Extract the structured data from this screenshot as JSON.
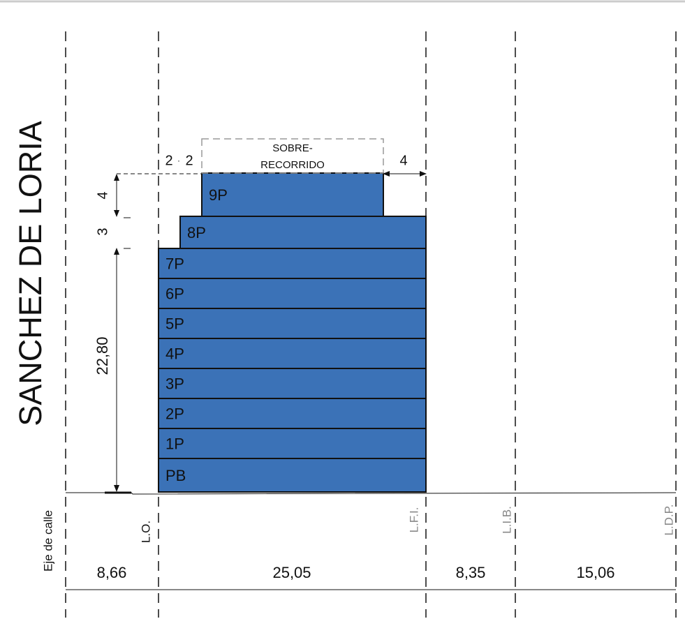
{
  "title": "SANCHEZ DE LORIA",
  "floors": [
    "PB",
    "1P",
    "2P",
    "3P",
    "4P",
    "5P",
    "6P",
    "7P",
    "8P",
    "9P"
  ],
  "overrun": [
    "SOBRE-",
    "RECORRIDO"
  ],
  "height_dims": [
    "4",
    "3",
    "22,80"
  ],
  "setback_dims": [
    "2",
    "2",
    "4"
  ],
  "lines": [
    "L.O.",
    "L.F.I.",
    "L.I.B.",
    "L.D.P."
  ],
  "axis_label": "Eje de calle",
  "widths": [
    "8,66",
    "25,05",
    "8,35",
    "15,06"
  ]
}
